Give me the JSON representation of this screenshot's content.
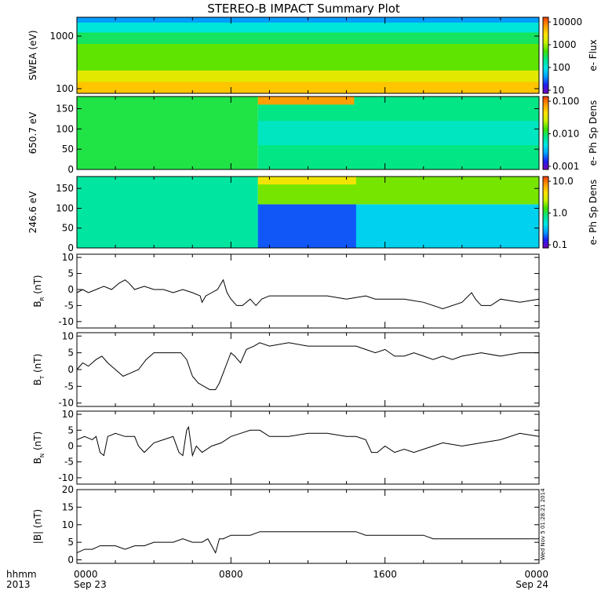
{
  "title": "STEREO-B IMPACT Summary Plot",
  "colors": {
    "frame": "#000000",
    "trace": "#000000",
    "spec_scale": [
      "#7800b8",
      "#1e1ef0",
      "#00a0ff",
      "#00e6e6",
      "#00e68c",
      "#40e000",
      "#c8f000",
      "#ffe000",
      "#ff9a00",
      "#ff3c00"
    ]
  },
  "time_axis": {
    "row1_labels": [
      "hhmm",
      "0000",
      "0800",
      "1600",
      "0000"
    ],
    "row2_labels": [
      "2013",
      "Sep 23",
      "",
      "",
      "Sep 24"
    ],
    "hours": [
      0,
      8,
      16,
      24
    ]
  },
  "timestamp": "Wed Nov  5 01:28:21 2014",
  "chart_data": [
    {
      "type": "heatmap",
      "name": "swea",
      "ylabel": "SWEA (eV)",
      "ylog": true,
      "yticks": [
        "1000",
        "100"
      ],
      "colorbar_label": "e- Flux",
      "colorbar_ticks": [
        "10000",
        "1000",
        "100",
        "10"
      ],
      "colorbar_range": [
        5,
        20000
      ],
      "bands": [
        {
          "from": 0.0,
          "to": 0.07,
          "level": 0.22
        },
        {
          "from": 0.07,
          "to": 0.2,
          "level": 0.35
        },
        {
          "from": 0.2,
          "to": 0.35,
          "level": 0.48
        },
        {
          "from": 0.35,
          "to": 0.7,
          "level": 0.58
        },
        {
          "from": 0.7,
          "to": 0.85,
          "level": 0.72
        },
        {
          "from": 0.85,
          "to": 1.0,
          "level": 0.82
        }
      ]
    },
    {
      "type": "heatmap",
      "name": "pad-650",
      "ylabel": "650.7 eV",
      "yrange": [
        0,
        180
      ],
      "yticks": [
        "150",
        "100",
        "50",
        "0"
      ],
      "colorbar_label": "e- Ph Sp Dens",
      "colorbar_ticks": [
        "0.100",
        "0.010",
        "0.001"
      ],
      "colorbar_range": [
        0.001,
        0.1
      ],
      "regions": [
        {
          "t0": 0.0,
          "t1": 9.4,
          "level": 0.5
        },
        {
          "t0": 9.4,
          "t1": 24.0,
          "level": 0.45
        },
        {
          "t0": 9.4,
          "t1": 14.4,
          "y0": 160,
          "y1": 180,
          "level": 0.88
        },
        {
          "t0": 9.4,
          "t1": 24.0,
          "y0": 60,
          "y1": 120,
          "level": 0.38
        }
      ]
    },
    {
      "type": "heatmap",
      "name": "pad-246",
      "ylabel": "246.6 eV",
      "yrange": [
        0,
        180
      ],
      "yticks": [
        "150",
        "100",
        "50",
        "0"
      ],
      "colorbar_label": "e- Ph Sp Dens",
      "colorbar_ticks": [
        "10.0",
        "1.0",
        "0.1"
      ],
      "colorbar_range": [
        0.1,
        10
      ],
      "regions": [
        {
          "t0": 0.0,
          "t1": 9.4,
          "level": 0.42
        },
        {
          "t0": 9.4,
          "t1": 24.0,
          "y0": 0,
          "y1": 110,
          "level": 0.3
        },
        {
          "t0": 9.4,
          "t1": 14.5,
          "y0": 0,
          "y1": 110,
          "level": 0.16
        },
        {
          "t0": 9.4,
          "t1": 24.0,
          "y0": 110,
          "y1": 180,
          "level": 0.6
        },
        {
          "t0": 9.4,
          "t1": 14.5,
          "y0": 160,
          "y1": 180,
          "level": 0.75
        }
      ]
    },
    {
      "type": "line",
      "name": "br",
      "ylabel": "B",
      "ysub": "R",
      "yunit": " (nT)",
      "ylim": [
        -12,
        11
      ],
      "yticks": [
        10,
        5,
        0,
        -5,
        -10
      ],
      "x": [
        0.0,
        0.3,
        0.6,
        1.0,
        1.4,
        1.8,
        2.2,
        2.5,
        2.7,
        3.0,
        3.5,
        4.0,
        4.5,
        5.0,
        5.5,
        6.0,
        6.4,
        6.5,
        6.7,
        7.0,
        7.3,
        7.5,
        7.6,
        7.8,
        8.0,
        8.3,
        8.6,
        9.0,
        9.3,
        9.6,
        10.0,
        11.0,
        12.0,
        13.0,
        14.0,
        15.0,
        15.5,
        16.0,
        17.0,
        18.0,
        19.0,
        20.0,
        20.5,
        20.7,
        21.0,
        21.5,
        22.0,
        23.0,
        24.0
      ],
      "y": [
        -1,
        0,
        -1,
        0,
        1,
        0,
        2,
        3,
        2,
        0,
        1,
        0,
        0,
        -1,
        0,
        -1,
        -2,
        -4,
        -2,
        -1,
        0,
        2,
        3,
        -1,
        -3,
        -5,
        -5,
        -3,
        -5,
        -3,
        -2,
        -2,
        -2,
        -2,
        -3,
        -2,
        -3,
        -3,
        -3,
        -4,
        -6,
        -4,
        -1,
        -3,
        -5,
        -5,
        -3,
        -4,
        -3
      ]
    },
    {
      "type": "line",
      "name": "bt",
      "ylabel": "B",
      "ysub": "T",
      "yunit": " (nT)",
      "ylim": [
        -11,
        11
      ],
      "yticks": [
        10,
        5,
        0,
        -5,
        -10
      ],
      "x": [
        0.0,
        0.3,
        0.6,
        1.0,
        1.3,
        1.6,
        2.0,
        2.4,
        2.8,
        3.2,
        3.6,
        4.0,
        4.5,
        5.0,
        5.4,
        5.7,
        6.0,
        6.3,
        6.6,
        6.9,
        7.2,
        7.4,
        7.6,
        7.8,
        8.0,
        8.2,
        8.5,
        8.8,
        9.2,
        9.5,
        10.0,
        11.0,
        12.0,
        13.0,
        14.0,
        14.5,
        15.0,
        15.5,
        16.0,
        16.5,
        17.0,
        17.5,
        18.0,
        18.5,
        19.0,
        19.5,
        20.0,
        21.0,
        22.0,
        23.0,
        24.0
      ],
      "y": [
        0,
        2,
        1,
        3,
        4,
        2,
        0,
        -2,
        -1,
        0,
        3,
        5,
        5,
        5,
        5,
        3,
        -2,
        -4,
        -5,
        -6,
        -6,
        -4,
        -1,
        2,
        5,
        4,
        2,
        6,
        7,
        8,
        7,
        8,
        7,
        7,
        7,
        7,
        6,
        5,
        6,
        4,
        4,
        5,
        4,
        3,
        4,
        3,
        4,
        5,
        4,
        5,
        5
      ]
    },
    {
      "type": "line",
      "name": "bn",
      "ylabel": "B",
      "ysub": "N",
      "yunit": " (nT)",
      "ylim": [
        -12,
        11
      ],
      "yticks": [
        10,
        5,
        0,
        -5,
        -10
      ],
      "x": [
        0.0,
        0.4,
        0.8,
        1.0,
        1.2,
        1.4,
        1.6,
        2.0,
        2.5,
        3.0,
        3.2,
        3.5,
        4.0,
        4.5,
        5.0,
        5.3,
        5.5,
        5.7,
        5.8,
        6.0,
        6.2,
        6.5,
        7.0,
        7.5,
        8.0,
        8.5,
        9.0,
        9.5,
        10.0,
        11.0,
        12.0,
        13.0,
        14.0,
        14.5,
        15.0,
        15.3,
        15.6,
        16.0,
        16.5,
        17.0,
        17.5,
        18.0,
        18.5,
        19.0,
        20.0,
        21.0,
        22.0,
        23.0,
        24.0
      ],
      "y": [
        2,
        3,
        2,
        3,
        -2,
        -3,
        3,
        4,
        3,
        3,
        0,
        -2,
        1,
        2,
        3,
        -2,
        -3,
        5,
        6,
        -3,
        0,
        -2,
        0,
        1,
        3,
        4,
        5,
        5,
        3,
        3,
        4,
        4,
        3,
        3,
        2,
        -2,
        -2,
        0,
        -2,
        -1,
        -2,
        -1,
        0,
        1,
        0,
        1,
        2,
        4,
        3
      ]
    },
    {
      "type": "line",
      "name": "bmag",
      "ylabel": "|B| (nT)",
      "ylim": [
        -1,
        20
      ],
      "yticks": [
        20,
        15,
        10,
        5,
        0
      ],
      "x": [
        0.0,
        0.4,
        0.8,
        1.2,
        1.6,
        2.0,
        2.5,
        3.0,
        3.5,
        4.0,
        4.5,
        5.0,
        5.5,
        6.0,
        6.5,
        6.8,
        7.0,
        7.2,
        7.4,
        7.6,
        8.0,
        8.5,
        9.0,
        9.5,
        10.0,
        11.0,
        12.0,
        13.0,
        14.0,
        14.5,
        15.0,
        16.0,
        17.0,
        18.0,
        18.5,
        19.0,
        20.0,
        21.0,
        22.0,
        23.0,
        24.0
      ],
      "y": [
        2,
        3,
        3,
        4,
        4,
        4,
        3,
        4,
        4,
        5,
        5,
        5,
        6,
        5,
        5,
        6,
        4,
        2,
        6,
        6,
        7,
        7,
        7,
        8,
        8,
        8,
        8,
        8,
        8,
        8,
        7,
        7,
        7,
        7,
        6,
        6,
        6,
        6,
        6,
        6,
        6
      ]
    }
  ]
}
